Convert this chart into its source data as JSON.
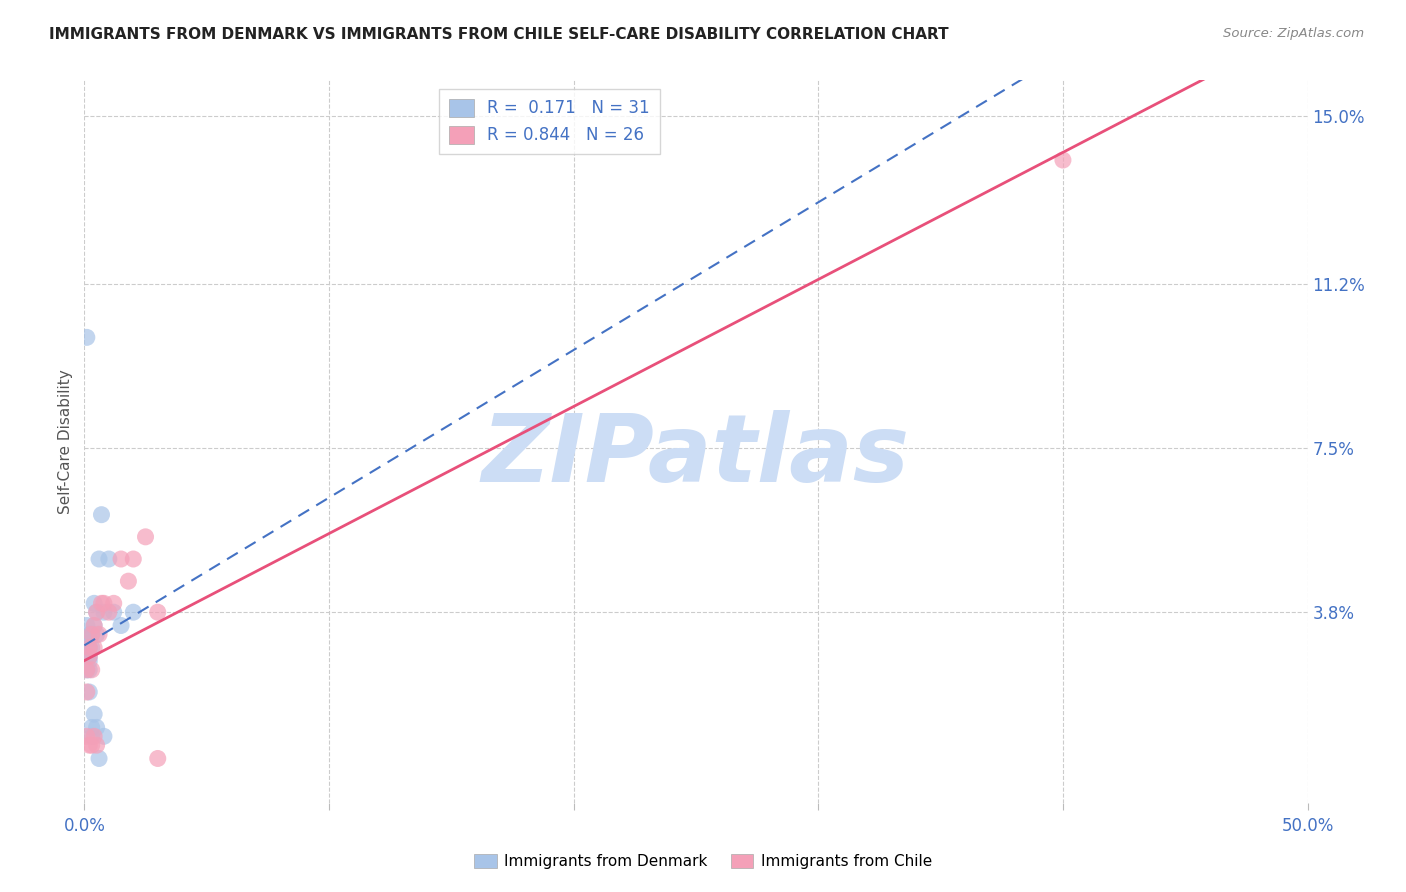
{
  "title": "IMMIGRANTS FROM DENMARK VS IMMIGRANTS FROM CHILE SELF-CARE DISABILITY CORRELATION CHART",
  "source": "Source: ZipAtlas.com",
  "ylabel": "Self-Care Disability",
  "xlim": [
    0.0,
    0.5
  ],
  "ylim": [
    -0.005,
    0.158
  ],
  "denmark_R": 0.171,
  "denmark_N": 31,
  "chile_R": 0.844,
  "chile_N": 26,
  "denmark_color": "#a8c4e8",
  "chile_color": "#f4a0b8",
  "denmark_line_color": "#4472c4",
  "chile_line_color": "#e8507a",
  "watermark": "ZIPatlas",
  "watermark_color": "#ccddf5",
  "background_color": "#ffffff",
  "grid_color": "#cccccc",
  "ytick_positions": [
    0.038,
    0.075,
    0.112,
    0.15
  ],
  "ytick_labels": [
    "3.8%",
    "7.5%",
    "11.2%",
    "15.0%"
  ],
  "xtick_positions": [
    0.0,
    0.1,
    0.2,
    0.3,
    0.4,
    0.5
  ],
  "denmark_x": [
    0.001,
    0.001,
    0.001,
    0.001,
    0.002,
    0.002,
    0.002,
    0.002,
    0.002,
    0.002,
    0.002,
    0.003,
    0.003,
    0.003,
    0.003,
    0.004,
    0.004,
    0.004,
    0.005,
    0.005,
    0.005,
    0.006,
    0.006,
    0.007,
    0.008,
    0.008,
    0.01,
    0.012,
    0.015,
    0.02,
    0.001
  ],
  "denmark_y": [
    0.028,
    0.031,
    0.035,
    0.025,
    0.028,
    0.03,
    0.032,
    0.033,
    0.02,
    0.025,
    0.027,
    0.03,
    0.033,
    0.01,
    0.012,
    0.035,
    0.04,
    0.015,
    0.038,
    0.033,
    0.012,
    0.05,
    0.005,
    0.06,
    0.038,
    0.01,
    0.05,
    0.038,
    0.035,
    0.038,
    0.1
  ],
  "chile_x": [
    0.001,
    0.001,
    0.001,
    0.002,
    0.002,
    0.002,
    0.003,
    0.003,
    0.003,
    0.004,
    0.004,
    0.004,
    0.005,
    0.005,
    0.006,
    0.007,
    0.008,
    0.01,
    0.012,
    0.015,
    0.018,
    0.02,
    0.025,
    0.03,
    0.03,
    0.4
  ],
  "chile_y": [
    0.02,
    0.025,
    0.01,
    0.028,
    0.03,
    0.008,
    0.033,
    0.025,
    0.008,
    0.035,
    0.03,
    0.01,
    0.038,
    0.008,
    0.033,
    0.04,
    0.04,
    0.038,
    0.04,
    0.05,
    0.045,
    0.05,
    0.055,
    0.038,
    0.005,
    0.14
  ]
}
